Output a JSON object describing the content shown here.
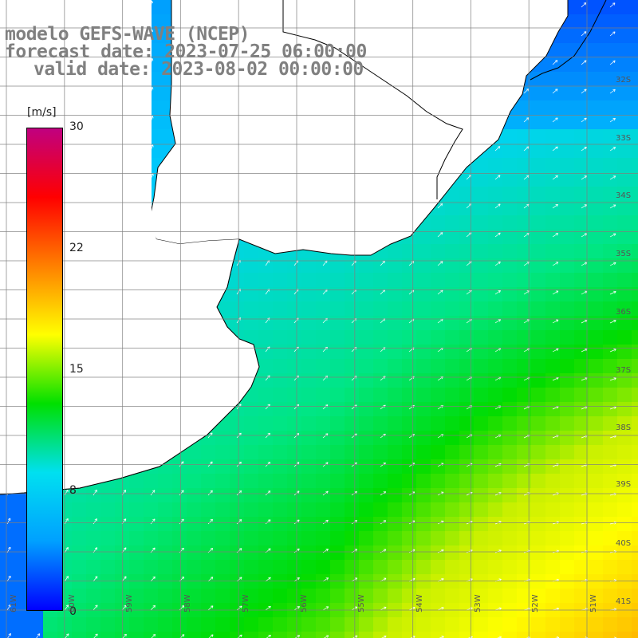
{
  "header": {
    "model": "modelo GEFS-WAVE (NCEP)",
    "forecast": "forecast date: 2023-07-25 06:00:00",
    "valid": "valid date: 2023-08-02 00:00:00"
  },
  "colorbar": {
    "unit": "[m/s]",
    "min": 0,
    "max": 30,
    "ticks": [
      "30",
      "22",
      "15",
      "8",
      "0"
    ],
    "tick_values": [
      30,
      22,
      15,
      8,
      0
    ],
    "colors": [
      "#0000ff",
      "#00a0ff",
      "#00e0f0",
      "#00e000",
      "#ffff00",
      "#ff8000",
      "#ff0000",
      "#c00080"
    ]
  },
  "map": {
    "field": "wind speed with wind direction arrows",
    "land_color": "#ffffff",
    "coast_color": "#000000",
    "grid_color": "#808080",
    "lat_labels": [
      "32S",
      "33S",
      "34S",
      "35S",
      "36S",
      "37S",
      "38S",
      "39S",
      "40S",
      "41S"
    ],
    "lon_labels": [
      "61W",
      "60W",
      "59W",
      "58W",
      "57W",
      "56W",
      "55W",
      "54W",
      "53W",
      "52W",
      "51W"
    ]
  }
}
